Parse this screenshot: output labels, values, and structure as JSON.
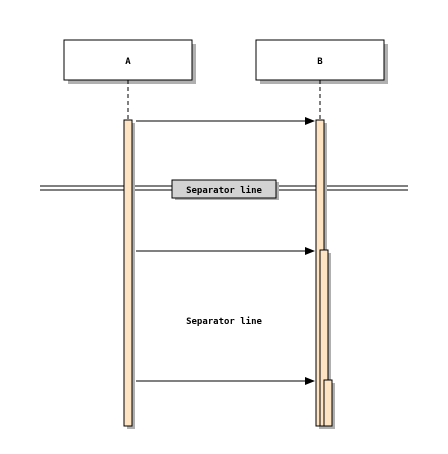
{
  "diagram": {
    "participants": [
      {
        "id": "A",
        "label": "A"
      },
      {
        "id": "B",
        "label": "B"
      }
    ],
    "messages": [
      {
        "from": "A",
        "to": "B",
        "label": ""
      },
      {
        "from": "A",
        "to": "B",
        "label": ""
      },
      {
        "from": "A",
        "to": "B",
        "label": ""
      }
    ],
    "separator": {
      "label": "Separator line"
    },
    "free_text": {
      "label": "Separator line"
    }
  },
  "colors": {
    "activation_fill": "#ffe4c4",
    "line": "#000000",
    "separator_box": "#d3d3d3",
    "box_fill": "#ffffff",
    "shadow": "#b0b0b0"
  }
}
